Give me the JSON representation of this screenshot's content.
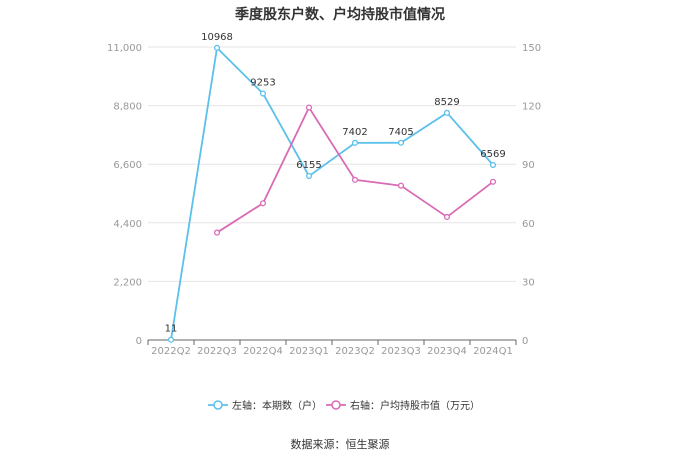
{
  "chart_data": {
    "type": "line",
    "title": "季度股东户数、户均持股市值情况",
    "categories": [
      "2022Q2",
      "2022Q3",
      "2022Q4",
      "2023Q1",
      "2023Q2",
      "2023Q3",
      "2023Q4",
      "2024Q1"
    ],
    "left_axis": {
      "ylim": [
        0,
        11000
      ],
      "ticks": [
        "0",
        "2,200",
        "4,400",
        "6,600",
        "8,800",
        "11,000"
      ]
    },
    "right_axis": {
      "ylim": [
        0,
        150
      ],
      "ticks": [
        "0",
        "30",
        "60",
        "90",
        "120",
        "150"
      ]
    },
    "series": [
      {
        "name": "左轴：本期数（户）",
        "axis": "left",
        "color": "#5bc0eb",
        "values": [
          11,
          10968,
          9253,
          6155,
          7402,
          7405,
          8529,
          6569
        ],
        "labels": [
          "11",
          "10968",
          "9253",
          "6155",
          "7402",
          "7405",
          "8529",
          "6569"
        ]
      },
      {
        "name": "右轴：户均持股市值（万元）",
        "axis": "right",
        "color": "#d96bb5",
        "values": [
          null,
          55,
          70,
          119,
          82,
          79,
          63,
          81
        ]
      }
    ],
    "grid": true,
    "legend_position": "bottom"
  },
  "source": "数据来源：恒生聚源"
}
